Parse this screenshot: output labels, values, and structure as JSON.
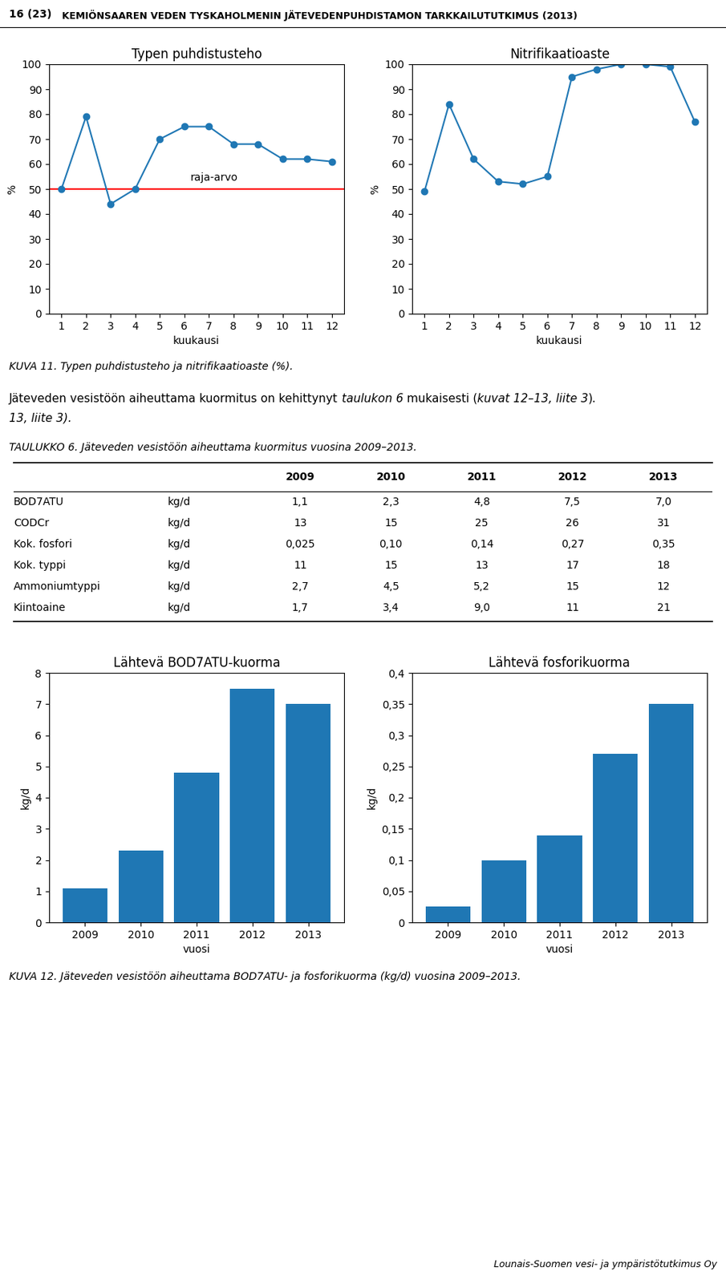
{
  "header_left": "16 (23)",
  "header_right": "KEMIÖNSAAREN VEDEN TYSKAHOLMENIN JÄTEVEDENPUHDISTAMON TARKKAILUTUTKIMUS (2013)",
  "chart_data": [
    {
      "type": "line",
      "title": "Typen puhdistusteho",
      "x": [
        1,
        2,
        3,
        4,
        5,
        6,
        7,
        8,
        9,
        10,
        11,
        12
      ],
      "values": [
        50,
        79,
        44,
        50,
        70,
        75,
        75,
        68,
        68,
        62,
        62,
        61
      ],
      "xlabel": "kuukausi",
      "ylabel": "%",
      "xlim": [
        0.5,
        12.5
      ],
      "ylim": [
        0,
        100
      ],
      "xticks": [
        1,
        2,
        3,
        4,
        5,
        6,
        7,
        8,
        9,
        10,
        11,
        12
      ],
      "yticks": [
        0,
        10,
        20,
        30,
        40,
        50,
        60,
        70,
        80,
        90,
        100
      ],
      "marker": "o",
      "hlines": [
        {
          "value": 50,
          "color": "red",
          "label": "raja-arvo"
        }
      ]
    },
    {
      "type": "line",
      "title": "Nitrifikaatioaste",
      "x": [
        1,
        2,
        3,
        4,
        5,
        6,
        7,
        8,
        9,
        10,
        11,
        12
      ],
      "values": [
        49,
        84,
        62,
        53,
        52,
        55,
        95,
        98,
        100,
        100,
        99,
        77
      ],
      "xlabel": "kuukausi",
      "ylabel": "%",
      "xlim": [
        0.5,
        12.5
      ],
      "ylim": [
        0,
        100
      ],
      "xticks": [
        1,
        2,
        3,
        4,
        5,
        6,
        7,
        8,
        9,
        10,
        11,
        12
      ],
      "yticks": [
        0,
        10,
        20,
        30,
        40,
        50,
        60,
        70,
        80,
        90,
        100
      ],
      "marker": "o"
    },
    {
      "type": "bar",
      "title": "Lähtevä BOD7ATU-kuorma",
      "categories": [
        "2009",
        "2010",
        "2011",
        "2012",
        "2013"
      ],
      "values": [
        1.1,
        2.3,
        4.8,
        7.5,
        7.0
      ],
      "xlabel": "vuosi",
      "ylabel": "kg/d",
      "ylim": [
        0,
        8
      ],
      "yticks": [
        0,
        1,
        2,
        3,
        4,
        5,
        6,
        7,
        8
      ]
    },
    {
      "type": "bar",
      "title": "Lähtevä fosforikuorma",
      "categories": [
        "2009",
        "2010",
        "2011",
        "2012",
        "2013"
      ],
      "values": [
        0.025,
        0.1,
        0.14,
        0.27,
        0.35
      ],
      "xlabel": "vuosi",
      "ylabel": "kg/d",
      "ylim": [
        0,
        0.4
      ],
      "yticks": [
        0,
        {
          "value": 0.05,
          "label": "0,05"
        },
        {
          "value": 0.1,
          "label": "0,1"
        },
        {
          "value": 0.15,
          "label": "0,15"
        },
        {
          "value": 0.2,
          "label": "0,2"
        },
        {
          "value": 0.25,
          "label": "0,25"
        },
        {
          "value": 0.3,
          "label": "0,3"
        },
        {
          "value": 0.35,
          "label": "0,35"
        },
        {
          "value": 0.4,
          "label": "0,4"
        }
      ]
    }
  ],
  "caption_1": "KUVA 11. Typen puhdistusteho ja nitrifikaatioaste (%).",
  "paragraph": [
    "Jäteveden vesistöön aiheuttama kuormitus on kehittynyt ",
    "taulukon 6",
    " mukaisesti (",
    "kuvat 12–13, liite 3",
    ")."
  ],
  "paragraph_line2": "13, liite 3).",
  "table": {
    "title": "TAULUKKO 6. Jäteveden vesistöön aiheuttama kuormitus vuosina 2009–2013.",
    "columns": [
      "2009",
      "2010",
      "2011",
      "2012",
      "2013"
    ],
    "rows": [
      [
        "BOD7ATU",
        "kg/d",
        "1,1",
        "2,3",
        "4,8",
        "7,5",
        "7,0"
      ],
      [
        "CODCr",
        "kg/d",
        "13",
        "15",
        "25",
        "26",
        "31"
      ],
      [
        "Kok. fosfori",
        "kg/d",
        "0,025",
        "0,10",
        "0,14",
        "0,27",
        "0,35"
      ],
      [
        "Kok. typpi",
        "kg/d",
        "11",
        "15",
        "13",
        "17",
        "18"
      ],
      [
        "Ammoniumtyppi",
        "kg/d",
        "2,7",
        "4,5",
        "5,2",
        "15",
        "12"
      ],
      [
        "Kiintoaine",
        "kg/d",
        "1,7",
        "3,4",
        "9,0",
        "11",
        "21"
      ]
    ]
  },
  "caption_2": "KUVA 12. Jäteveden vesistöön aiheuttama BOD7ATU- ja fosforikuorma (kg/d) vuosina 2009–2013.",
  "footer": "Lounais-Suomen vesi- ja ympäristötutkimus Oy"
}
